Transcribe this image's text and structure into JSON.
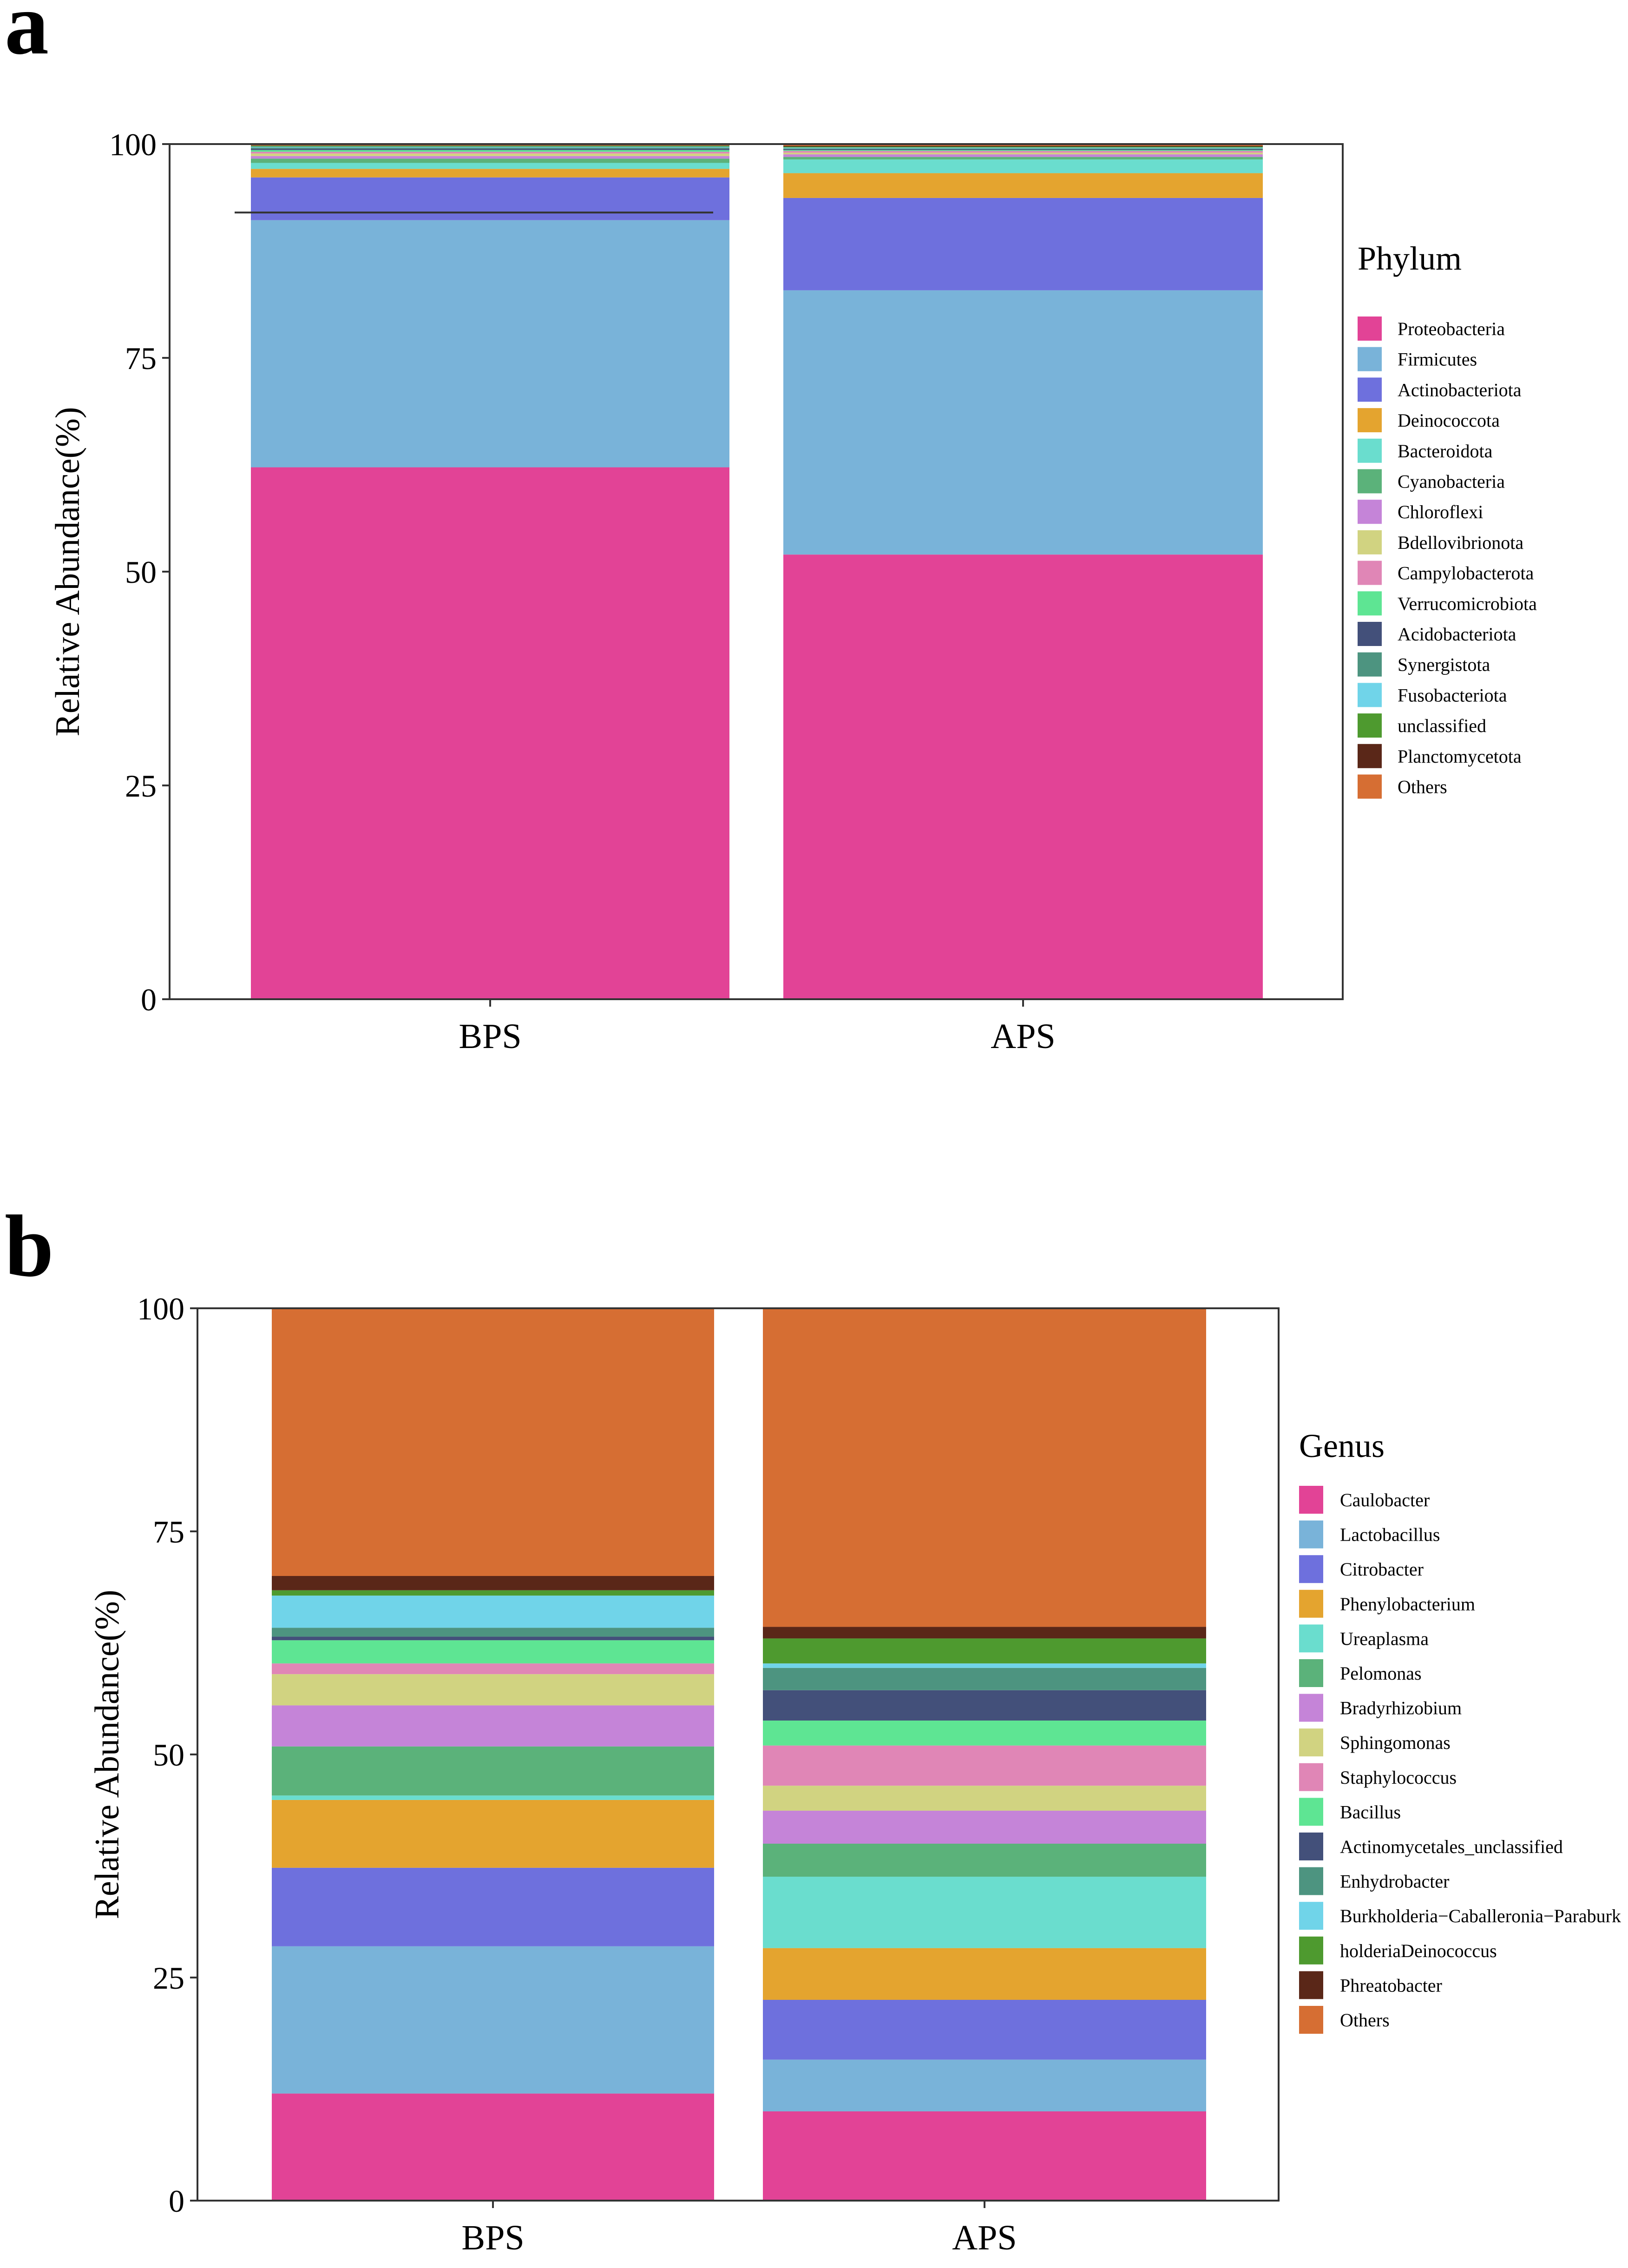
{
  "panels": {
    "a": {
      "letter": "a"
    },
    "b": {
      "letter": "b"
    }
  },
  "chart_data": [
    {
      "type": "bar",
      "stacked": true,
      "panel": "a",
      "title": "",
      "xlabel": "",
      "ylabel": "Relative Abundance(%)",
      "ylim": [
        0,
        100
      ],
      "yticks": [
        0,
        25,
        50,
        75,
        100
      ],
      "categories": [
        "BPS",
        "APS"
      ],
      "legend_title": "Phylum",
      "legend_position": "right",
      "series": [
        {
          "name": "Proteobacteria",
          "color": "#E24396",
          "values": [
            62.2,
            52.0
          ]
        },
        {
          "name": "Firmicutes",
          "color": "#79B3D9",
          "values": [
            28.9,
            30.9
          ]
        },
        {
          "name": "Actinobacteriota",
          "color": "#6E70DD",
          "values": [
            5.0,
            10.8
          ]
        },
        {
          "name": "Deinococcota",
          "color": "#E4A42F",
          "values": [
            1.0,
            2.9
          ]
        },
        {
          "name": "Bacteroidota",
          "color": "#6ADDCE",
          "values": [
            0.7,
            1.6
          ]
        },
        {
          "name": "Cyanobacteria",
          "color": "#5BB27A",
          "values": [
            0.5,
            0.3
          ]
        },
        {
          "name": "Chloroflexi",
          "color": "#C584D8",
          "values": [
            0.3,
            0.3
          ]
        },
        {
          "name": "Bdellovibrionota",
          "color": "#D1D381",
          "values": [
            0.3,
            0.2
          ]
        },
        {
          "name": "Campylobacterota",
          "color": "#E086B6",
          "values": [
            0.2,
            0.2
          ]
        },
        {
          "name": "Verrucomicrobiota",
          "color": "#5EE593",
          "values": [
            0.2,
            0.1
          ]
        },
        {
          "name": "Acidobacteriota",
          "color": "#43507A",
          "values": [
            0.15,
            0.1
          ]
        },
        {
          "name": "Synergistota",
          "color": "#4D9480",
          "values": [
            0.15,
            0.1
          ]
        },
        {
          "name": "Fusobacteriota",
          "color": "#70D4E9",
          "values": [
            0.1,
            0.1
          ]
        },
        {
          "name": "unclassified",
          "color": "#4E9A2F",
          "values": [
            0.1,
            0.1
          ]
        },
        {
          "name": "Planctomycetota",
          "color": "#5A2718",
          "values": [
            0.05,
            0.1
          ]
        },
        {
          "name": "Others",
          "color": "#D66E33",
          "values": [
            0.15,
            0.2
          ]
        }
      ],
      "annotation_line_value": 92
    },
    {
      "type": "bar",
      "stacked": true,
      "panel": "b",
      "title": "",
      "xlabel": "",
      "ylabel": "Relative Abundance(%)",
      "ylim": [
        0,
        100
      ],
      "yticks": [
        0,
        25,
        50,
        75,
        100
      ],
      "categories": [
        "BPS",
        "APS"
      ],
      "legend_title": "Genus",
      "legend_position": "right",
      "series": [
        {
          "name": "Caulobacter",
          "color": "#E24396",
          "values": [
            12.0,
            10.0
          ]
        },
        {
          "name": "Lactobacillus",
          "color": "#79B3D9",
          "values": [
            16.5,
            5.8
          ]
        },
        {
          "name": "Citrobacter",
          "color": "#6E70DD",
          "values": [
            8.8,
            6.7
          ]
        },
        {
          "name": "Phenylobacterium",
          "color": "#E4A42F",
          "values": [
            7.6,
            5.8
          ]
        },
        {
          "name": "Ureaplasma",
          "color": "#6ADDCE",
          "values": [
            0.5,
            8.0
          ]
        },
        {
          "name": "Pelomonas",
          "color": "#5BB27A",
          "values": [
            5.5,
            3.7
          ]
        },
        {
          "name": "Bradyrhizobium",
          "color": "#C584D8",
          "values": [
            4.6,
            3.7
          ]
        },
        {
          "name": "Sphingomonas",
          "color": "#D1D381",
          "values": [
            3.5,
            2.8
          ]
        },
        {
          "name": "Staphylococcus",
          "color": "#E086B6",
          "values": [
            1.2,
            4.5
          ]
        },
        {
          "name": "Bacillus",
          "color": "#5EE593",
          "values": [
            2.6,
            2.8
          ]
        },
        {
          "name": "Actinomycetales_unclassified",
          "color": "#43507A",
          "values": [
            0.4,
            3.4
          ]
        },
        {
          "name": "Enhydrobacter",
          "color": "#4D9480",
          "values": [
            1.0,
            2.5
          ]
        },
        {
          "name": "Burkholderia−Caballeronia−Paraburk",
          "color": "#70D4E9",
          "values": [
            3.6,
            0.5
          ]
        },
        {
          "name": "holderiaDeinococcus",
          "color": "#4E9A2F",
          "values": [
            0.6,
            2.8
          ]
        },
        {
          "name": "Phreatobacter",
          "color": "#5A2718",
          "values": [
            1.6,
            1.3
          ]
        },
        {
          "name": "Others",
          "color": "#D66E33",
          "values": [
            30.0,
            35.7
          ]
        }
      ]
    }
  ]
}
